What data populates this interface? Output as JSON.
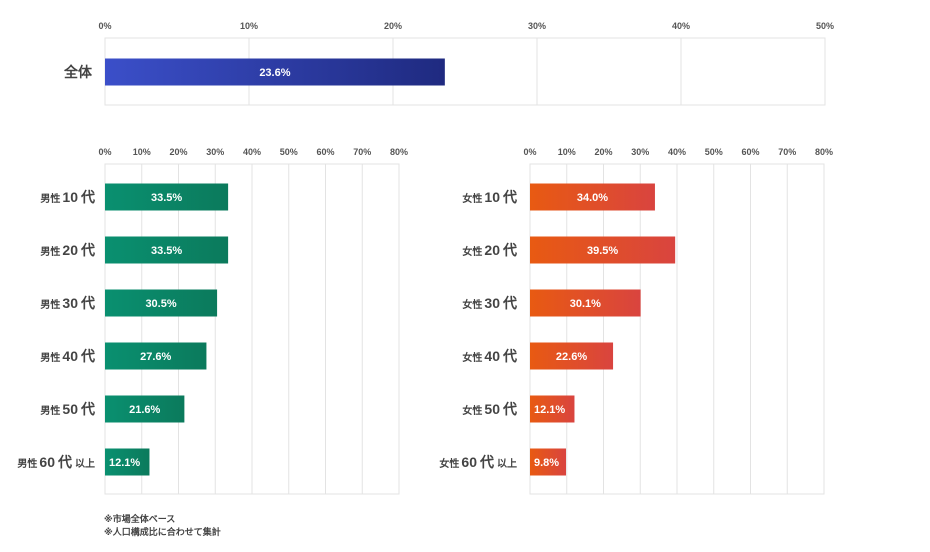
{
  "chart_data": [
    {
      "type": "bar",
      "orientation": "horizontal",
      "categories": [
        "全体"
      ],
      "values": [
        23.6
      ],
      "value_labels": [
        "23.6%"
      ],
      "ticks": [
        "0%",
        "10%",
        "20%",
        "30%",
        "40%",
        "50%"
      ],
      "xlim": [
        0,
        50
      ],
      "grid": true,
      "color": "#2a3a9a"
    },
    {
      "type": "bar",
      "orientation": "horizontal",
      "categories": [
        {
          "prefix": "男性",
          "age": "10",
          "unit": "代",
          "suffix": ""
        },
        {
          "prefix": "男性",
          "age": "20",
          "unit": "代",
          "suffix": ""
        },
        {
          "prefix": "男性",
          "age": "30",
          "unit": "代",
          "suffix": ""
        },
        {
          "prefix": "男性",
          "age": "40",
          "unit": "代",
          "suffix": ""
        },
        {
          "prefix": "男性",
          "age": "50",
          "unit": "代",
          "suffix": ""
        },
        {
          "prefix": "男性",
          "age": "60",
          "unit": "代",
          "suffix": "以上"
        }
      ],
      "values": [
        33.5,
        33.5,
        30.5,
        27.6,
        21.6,
        12.1
      ],
      "value_labels": [
        "33.5%",
        "33.5%",
        "30.5%",
        "27.6%",
        "21.6%",
        "12.1%"
      ],
      "ticks": [
        "0%",
        "10%",
        "20%",
        "30%",
        "40%",
        "50%",
        "60%",
        "70%",
        "80%"
      ],
      "xlim": [
        0,
        80
      ],
      "grid": true,
      "color": "#0f8a66"
    },
    {
      "type": "bar",
      "orientation": "horizontal",
      "categories": [
        {
          "prefix": "女性",
          "age": "10",
          "unit": "代",
          "suffix": ""
        },
        {
          "prefix": "女性",
          "age": "20",
          "unit": "代",
          "suffix": ""
        },
        {
          "prefix": "女性",
          "age": "30",
          "unit": "代",
          "suffix": ""
        },
        {
          "prefix": "女性",
          "age": "40",
          "unit": "代",
          "suffix": ""
        },
        {
          "prefix": "女性",
          "age": "50",
          "unit": "代",
          "suffix": ""
        },
        {
          "prefix": "女性",
          "age": "60",
          "unit": "代",
          "suffix": "以上"
        }
      ],
      "values": [
        34.0,
        39.5,
        30.1,
        22.6,
        12.1,
        9.8
      ],
      "value_labels": [
        "34.0%",
        "39.5%",
        "30.1%",
        "22.6%",
        "12.1%",
        "9.8%"
      ],
      "ticks": [
        "0%",
        "10%",
        "20%",
        "30%",
        "40%",
        "50%",
        "60%",
        "70%",
        "80%"
      ],
      "xlim": [
        0,
        80
      ],
      "grid": true,
      "color": "#e05530"
    }
  ],
  "notes": {
    "line1": "※市場全体ベース",
    "line2": "※人口構成比に合わせて集計"
  }
}
